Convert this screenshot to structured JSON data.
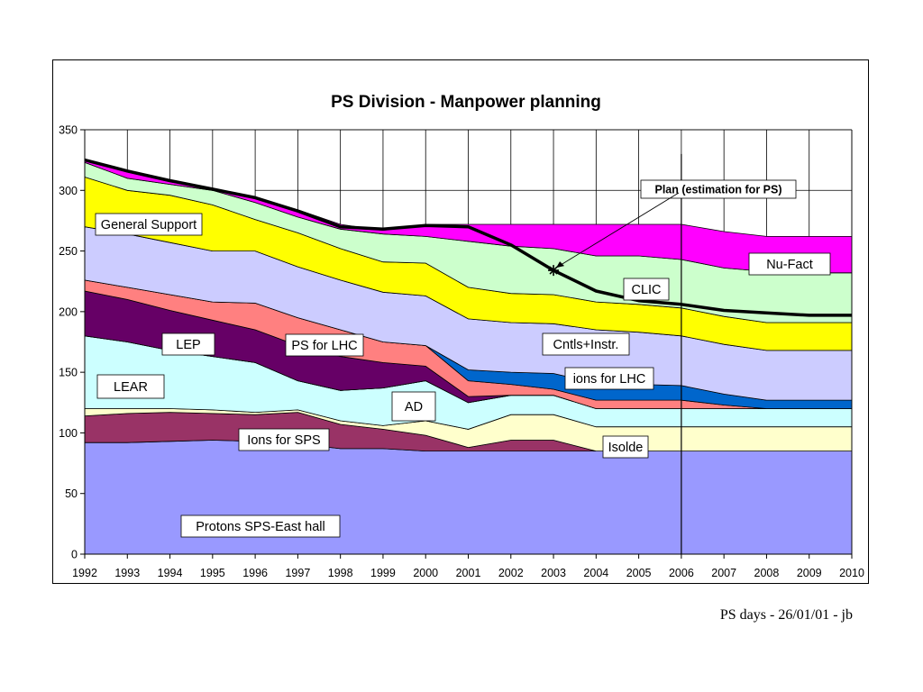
{
  "chart_data": {
    "type": "area",
    "title": "PS Division - Manpower planning",
    "xlabel": "",
    "ylabel": "",
    "ylim": [
      0,
      350
    ],
    "yticks": [
      0,
      50,
      100,
      150,
      200,
      250,
      300,
      350
    ],
    "x": [
      1992,
      1993,
      1994,
      1995,
      1996,
      1997,
      1998,
      1999,
      2000,
      2001,
      2002,
      2003,
      2004,
      2005,
      2006,
      2007,
      2008,
      2009,
      2010
    ],
    "grid": true,
    "series": [
      {
        "name": "Protons SPS-East hall",
        "color": "#9999ff",
        "cumulative": [
          92,
          92,
          93,
          94,
          93,
          91,
          87,
          87,
          85,
          85,
          85,
          85,
          85,
          85,
          85,
          85,
          85,
          85,
          85
        ]
      },
      {
        "name": "Ions for SPS",
        "color": "#993366",
        "cumulative": [
          114,
          116,
          117,
          116,
          115,
          117,
          107,
          103,
          98,
          88,
          94,
          94,
          85,
          85,
          85,
          85,
          85,
          85,
          85
        ]
      },
      {
        "name": "Isolde",
        "color": "#ffffcc",
        "cumulative": [
          120,
          120,
          120,
          119,
          117,
          119,
          110,
          106,
          110,
          103,
          115,
          115,
          105,
          105,
          105,
          105,
          105,
          105,
          105
        ]
      },
      {
        "name": "LEAR",
        "color": "#ccffff",
        "cumulative": [
          180,
          175,
          168,
          163,
          158,
          143,
          135,
          137,
          143,
          125,
          131,
          131,
          120,
          120,
          120,
          120,
          120,
          120,
          120
        ]
      },
      {
        "name": "AD",
        "color": "#993366",
        "cumulative": [
          180,
          175,
          168,
          163,
          158,
          143,
          135,
          137,
          143,
          125,
          131,
          131,
          120,
          120,
          120,
          120,
          120,
          120,
          120
        ]
      },
      {
        "name": "PS for LHC",
        "color": "#660066",
        "cumulative": [
          217,
          210,
          201,
          193,
          185,
          172,
          163,
          158,
          155,
          130,
          131,
          131,
          120,
          120,
          120,
          120,
          120,
          120,
          120
        ]
      },
      {
        "name": "LEP",
        "color": "#ff8080",
        "cumulative": [
          226,
          220,
          214,
          208,
          207,
          195,
          185,
          175,
          172,
          143,
          140,
          136,
          127,
          127,
          127,
          123,
          120,
          120,
          120
        ]
      },
      {
        "name": "ions for LHC",
        "color": "#0066cc",
        "cumulative": [
          226,
          220,
          214,
          208,
          207,
          195,
          185,
          175,
          172,
          152,
          150,
          149,
          141,
          140,
          139,
          132,
          127,
          127,
          127
        ]
      },
      {
        "name": "Cntls+Instr.",
        "color": "#ccccff",
        "cumulative": [
          270,
          264,
          257,
          250,
          250,
          237,
          226,
          216,
          213,
          194,
          191,
          190,
          185,
          183,
          180,
          173,
          168,
          168,
          168
        ]
      },
      {
        "name": "General Support",
        "color": "#ffff00",
        "cumulative": [
          311,
          300,
          296,
          288,
          276,
          265,
          252,
          241,
          240,
          220,
          215,
          214,
          208,
          206,
          203,
          196,
          191,
          191,
          191
        ]
      },
      {
        "name": "CLIC",
        "color": "#ccffcc",
        "cumulative": [
          323,
          310,
          305,
          300,
          290,
          278,
          268,
          264,
          262,
          258,
          254,
          252,
          246,
          246,
          243,
          236,
          233,
          232,
          232
        ]
      },
      {
        "name": "Nu-Fact",
        "color": "#ff00ff",
        "cumulative": [
          325,
          315,
          307,
          301,
          294,
          284,
          272,
          267,
          272,
          272,
          272,
          272,
          272,
          272,
          272,
          266,
          262,
          262,
          262
        ]
      }
    ],
    "plan_line": {
      "name": "Plan (estimation for PS)",
      "values": [
        325,
        316,
        308,
        301,
        294,
        283,
        270,
        268,
        271,
        270,
        255,
        234,
        217,
        209,
        206,
        201,
        199,
        197,
        197
      ],
      "marker_year": 2003
    },
    "vertical_marker_year": 2006,
    "labels": {
      "general_support": "General Support",
      "nu_fact": "Nu-Fact",
      "clic": "CLIC",
      "lep": "LEP",
      "ps_for_lhc": "PS for LHC",
      "cntls_instr": "Cntls+Instr.",
      "ions_for_lhc": "ions for LHC",
      "lear": "LEAR",
      "ad": "AD",
      "ions_for_sps": "Ions for SPS",
      "isolde": "Isolde",
      "protons": "Protons SPS-East hall",
      "plan": "Plan (estimation for PS)"
    }
  },
  "footer": "PS days - 26/01/01 - jb"
}
